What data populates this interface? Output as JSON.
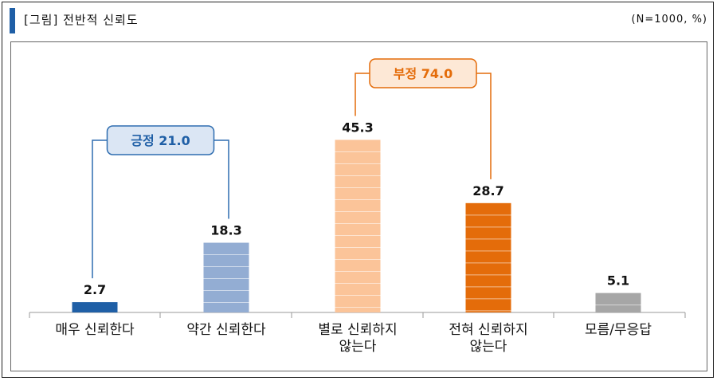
{
  "header": {
    "title": "[그림] 전반적 신뢰도",
    "note": "(N=1000, %)"
  },
  "colors": {
    "header_mark": "#1f5fa6",
    "positive_dark": "#1f5fa6",
    "positive_light": "#93add3",
    "negative_light": "#fbc499",
    "negative_dark": "#e46c0a",
    "unknown": "#a6a6a6",
    "positive_bracket": "#2e6db0",
    "negative_bracket": "#e46c0a",
    "positive_box_fill": "#dbe6f4",
    "negative_box_fill": "#fde8d6"
  },
  "chart_data": {
    "type": "bar",
    "categories": [
      [
        "매우 신뢰한다"
      ],
      [
        "약간 신뢰한다"
      ],
      [
        "별로 신뢰하지",
        "않는다"
      ],
      [
        "전혀 신뢰하지",
        "않는다"
      ],
      [
        "모름/무응답"
      ]
    ],
    "values": [
      2.7,
      18.3,
      45.3,
      28.7,
      5.1
    ],
    "value_labels": [
      "2.7",
      "18.3",
      "45.3",
      "28.7",
      "5.1"
    ],
    "ylim": [
      0,
      50
    ],
    "groups": [
      {
        "label": "긍정 21.0",
        "members": [
          0,
          1
        ]
      },
      {
        "label": "부정 74.0",
        "members": [
          2,
          3
        ]
      }
    ]
  }
}
